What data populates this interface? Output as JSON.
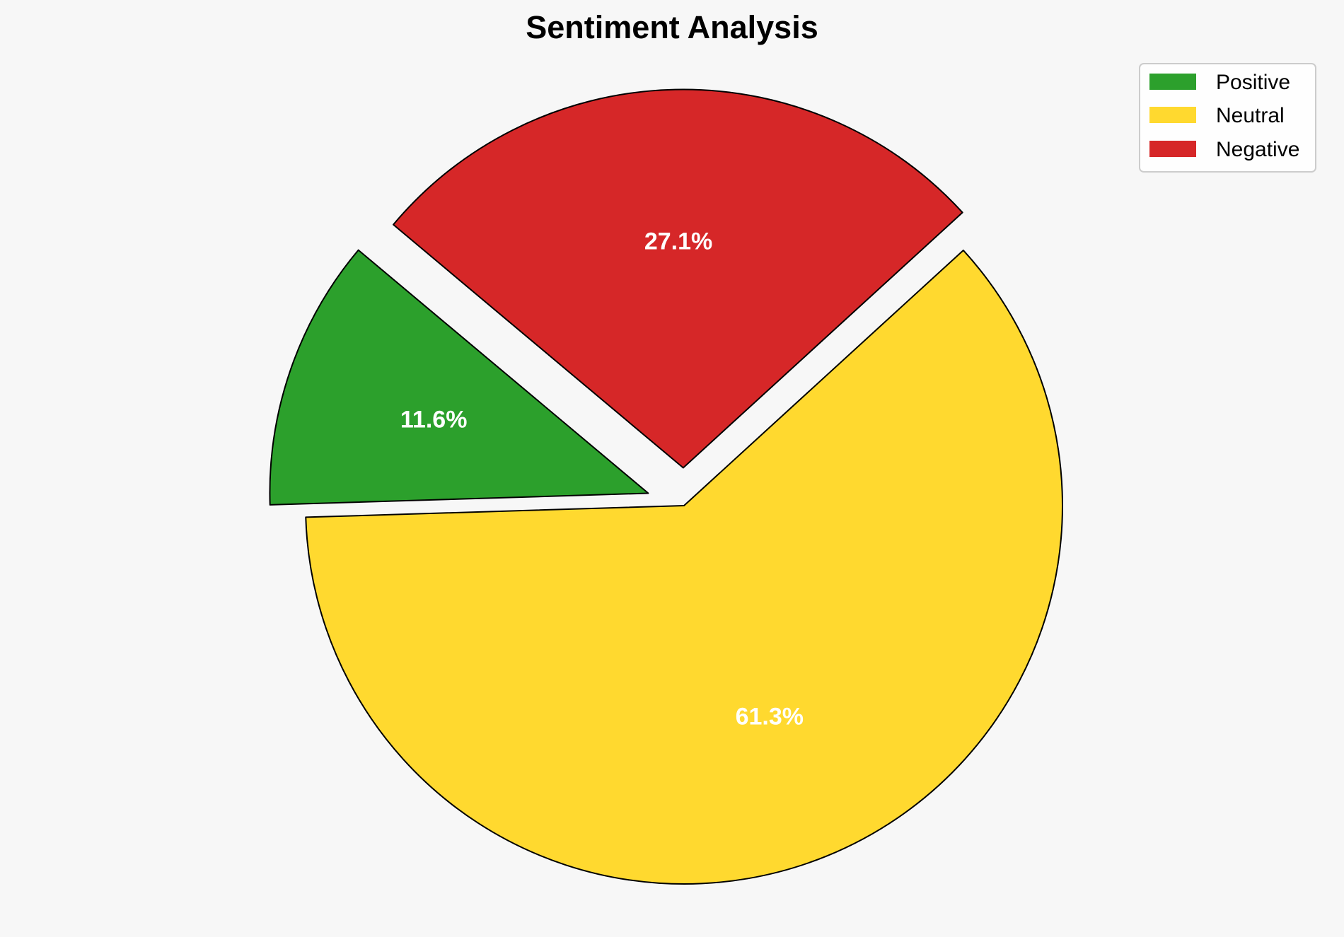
{
  "chart_data": {
    "type": "pie",
    "title": "Sentiment Analysis",
    "categories": [
      "Positive",
      "Neutral",
      "Negative"
    ],
    "values": [
      11.6,
      61.3,
      27.1
    ],
    "data_labels": [
      "11.6%",
      "61.3%",
      "27.1%"
    ],
    "colors": [
      "#2ca02c",
      "#ffd92f",
      "#d62728"
    ],
    "explode": [
      0.1,
      0,
      0.1
    ],
    "start_angle": 140,
    "direction": "counterclockwise",
    "edge_color": "#000000",
    "legend": {
      "placement": "top-right",
      "entries": [
        "Positive",
        "Neutral",
        "Negative"
      ]
    },
    "background": "#f7f7f7"
  }
}
